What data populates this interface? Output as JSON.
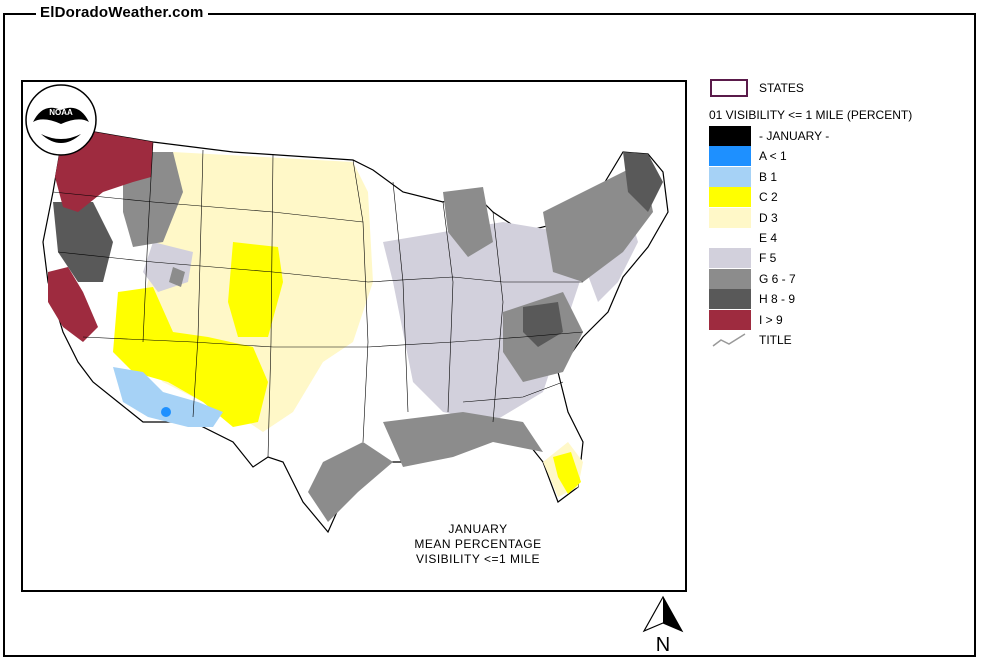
{
  "site": {
    "title": "ElDoradoWeather.com"
  },
  "map": {
    "caption_lines": [
      "JANUARY",
      "MEAN PERCENTAGE",
      "VISIBILITY <=1 MILE"
    ],
    "logo_text": "NOAA",
    "north_label": "N"
  },
  "legend": {
    "states_label": "STATES",
    "title": "01 VISIBILITY <= 1 MILE (PERCENT)",
    "items": [
      {
        "label": "- JANUARY -",
        "color": "#000000"
      },
      {
        "label": "A < 1",
        "color": "#1e90ff"
      },
      {
        "label": "B 1",
        "color": "#a6d2f6"
      },
      {
        "label": "C 2",
        "color": "#ffff00"
      },
      {
        "label": "D 3",
        "color": "#fff8c8"
      },
      {
        "label": "E 4",
        "color": "#ffffff"
      },
      {
        "label": "F 5",
        "color": "#d2d0dc"
      },
      {
        "label": "G 6 - 7",
        "color": "#8c8c8c"
      },
      {
        "label": "H 8 - 9",
        "color": "#595959"
      },
      {
        "label": "I > 9",
        "color": "#9e2b3f"
      }
    ],
    "title_symbol_label": "TITLE"
  }
}
